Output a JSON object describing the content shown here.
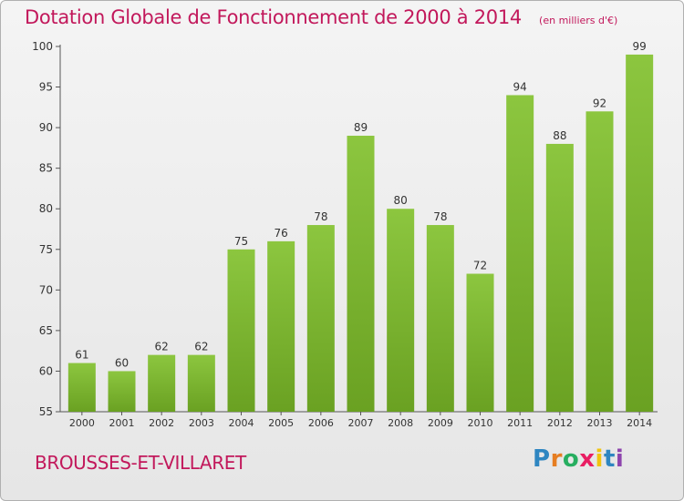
{
  "header": {
    "title": "Dotation Globale de Fonctionnement de 2000 à 2014",
    "subtitle": "(en milliers d'€)"
  },
  "footer": {
    "commune": "BROUSSES-ET-VILLARET",
    "logo_letters": [
      "P",
      "r",
      "o",
      "x",
      "i",
      "t",
      "i"
    ],
    "logo_colors": [
      "#2e86c1",
      "#e67e22",
      "#27ae60",
      "#e91e63",
      "#f1c40f",
      "#2e86c1",
      "#8e44ad"
    ]
  },
  "chart_data": {
    "type": "bar",
    "categories": [
      "2000",
      "2001",
      "2002",
      "2003",
      "2004",
      "2005",
      "2006",
      "2007",
      "2008",
      "2009",
      "2010",
      "2011",
      "2012",
      "2013",
      "2014"
    ],
    "values": [
      61,
      60,
      62,
      62,
      75,
      76,
      78,
      89,
      80,
      78,
      72,
      94,
      88,
      92,
      99
    ],
    "title": "Dotation Globale de Fonctionnement de 2000 à 2014",
    "subtitle": "(en milliers d'€)",
    "xlabel": "",
    "ylabel": "",
    "ylim": [
      55,
      100
    ],
    "yticks": [
      55,
      60,
      65,
      70,
      75,
      80,
      85,
      90,
      95,
      100
    ],
    "grid": false,
    "bar_color": "#8cc63f",
    "bar_color_dark": "#6aa122"
  }
}
